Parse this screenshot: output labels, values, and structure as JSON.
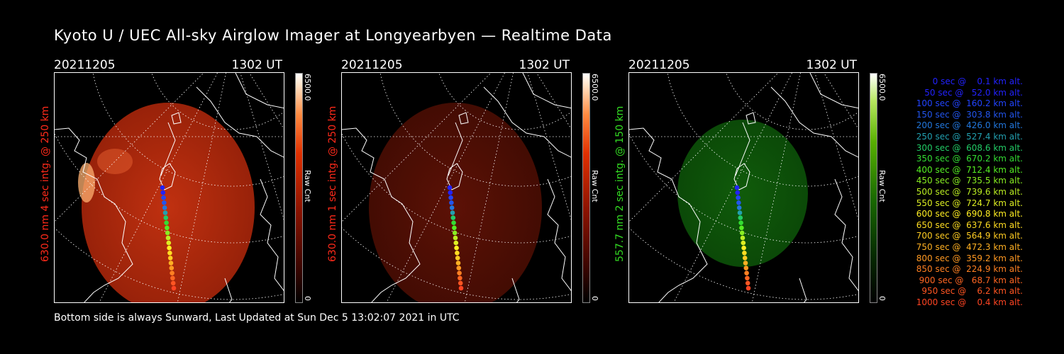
{
  "title": "Kyoto U / UEC All-sky Airglow Imager at Longyearbyen — Realtime Data",
  "footer": "Bottom side is always Sunward, Last Updated at Sun Dec  5 13:02:07 2021 in UTC",
  "panels": [
    {
      "date": "20211205",
      "time": "1302 UT",
      "ylabel": "630.0 nm 4 sec intg. @ 250 km",
      "ylabel_color": "#ff2a1a",
      "cbar_max": "6500.0",
      "cbar_unit": "Raw Cnt",
      "brightness": 0.85,
      "hue": "red"
    },
    {
      "date": "20211205",
      "time": "1302 UT",
      "ylabel": "630.0 nm 1 sec intg. @ 250 km",
      "ylabel_color": "#ff2a1a",
      "cbar_max": "6500.0",
      "cbar_unit": "Raw Cnt",
      "brightness": 0.3,
      "hue": "red"
    },
    {
      "date": "20211205",
      "time": "1302 UT",
      "ylabel": "557.7 nm 2 sec intg. @ 150 km",
      "ylabel_color": "#33dd22",
      "cbar_max": "6500.0",
      "cbar_unit": "Raw Cnt",
      "brightness": 0.55,
      "hue": "green"
    }
  ],
  "cbar_min": "0",
  "trajectory": [
    {
      "label": "   0 sec @    0.1 km alt.",
      "color": "#2222ff"
    },
    {
      "label": "  50 sec @   52.0 km alt.",
      "color": "#2222ff"
    },
    {
      "label": " 100 sec @  160.2 km alt.",
      "color": "#2244ff"
    },
    {
      "label": " 150 sec @  303.8 km alt.",
      "color": "#2255ee"
    },
    {
      "label": " 200 sec @  426.0 km alt.",
      "color": "#2277dd"
    },
    {
      "label": " 250 sec @  527.4 km alt.",
      "color": "#22a0b0"
    },
    {
      "label": " 300 sec @  608.6 km alt.",
      "color": "#22cc66"
    },
    {
      "label": " 350 sec @  670.2 km alt.",
      "color": "#33dd33"
    },
    {
      "label": " 400 sec @  712.4 km alt.",
      "color": "#55ee22"
    },
    {
      "label": " 450 sec @  735.5 km alt.",
      "color": "#88ee22"
    },
    {
      "label": " 500 sec @  739.6 km alt.",
      "color": "#bbee22"
    },
    {
      "label": " 550 sec @  724.7 km alt.",
      "color": "#ddee22"
    },
    {
      "label": " 600 sec @  690.8 km alt.",
      "color": "#ffee22"
    },
    {
      "label": " 650 sec @  637.6 km alt.",
      "color": "#ffdd22"
    },
    {
      "label": " 700 sec @  564.9 km alt.",
      "color": "#ffcc22"
    },
    {
      "label": " 750 sec @  472.3 km alt.",
      "color": "#ffb022"
    },
    {
      "label": " 800 sec @  359.2 km alt.",
      "color": "#ff9922"
    },
    {
      "label": " 850 sec @  224.9 km alt.",
      "color": "#ff8022"
    },
    {
      "label": " 900 sec @   68.7 km alt.",
      "color": "#ff6622"
    },
    {
      "label": " 950 sec @    6.2 km alt.",
      "color": "#ff5522"
    },
    {
      "label": "1000 sec @    0.4 km alt.",
      "color": "#ff4422"
    }
  ]
}
